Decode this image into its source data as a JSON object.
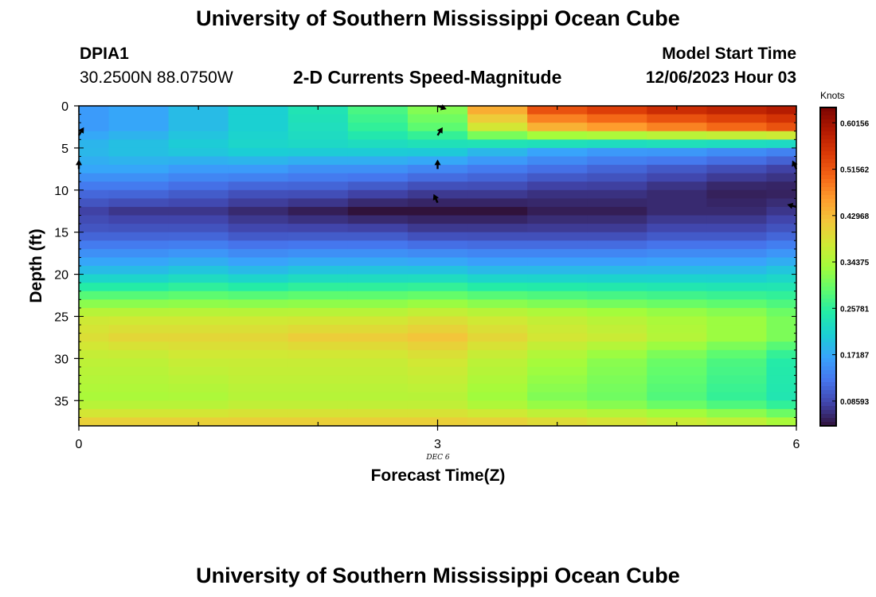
{
  "header": {
    "title": "University of Southern Mississippi Ocean Cube",
    "station": "DPIA1",
    "coords": "30.2500N  88.0750W",
    "plot_title": "2-D Currents Speed-Magnitude",
    "model_label": "Model Start Time",
    "model_time": "12/06/2023 Hour 03"
  },
  "footer": {
    "title": "University of Southern Mississippi Ocean Cube"
  },
  "colorbar": {
    "units": "Knots",
    "ticks": [
      "0.60156",
      "0.51562",
      "0.42968",
      "0.34375",
      "0.25781",
      "0.17187",
      "0.08593"
    ],
    "colors": [
      "#30123b",
      "#4145ab",
      "#4675ed",
      "#39a2fc",
      "#1bcfd4",
      "#24eca6",
      "#61fc6c",
      "#a4fc3b",
      "#d1e834",
      "#f3c63a",
      "#fe9b2d",
      "#f36315",
      "#d93806",
      "#b11901",
      "#7a0402"
    ]
  },
  "chart_data": {
    "type": "heatmap",
    "title": "2-D Currents Speed-Magnitude",
    "xlabel": "Forecast Time(Z)",
    "ylabel": "Depth (ft)",
    "x_ticks": [
      "0",
      "3",
      "6"
    ],
    "x_sublabel": "DEC 6",
    "y_ticks": [
      "0",
      "5",
      "10",
      "15",
      "20",
      "25",
      "30",
      "35"
    ],
    "xlim": [
      0,
      6
    ],
    "ylim": [
      38,
      0
    ],
    "vlim": [
      0.04,
      0.63
    ],
    "time_columns": [
      0,
      0.5,
      1,
      1.5,
      2,
      2.5,
      3,
      3.5,
      4,
      4.5,
      5,
      5.5,
      6
    ],
    "depth_knots": [
      0,
      2.5,
      5,
      7.5,
      10,
      12.5,
      15,
      20,
      25,
      27.5,
      30,
      35,
      38
    ],
    "speed_knots": [
      [
        0.16,
        0.17,
        0.19,
        0.21,
        0.24,
        0.28,
        0.32,
        0.46,
        0.54,
        0.56,
        0.58,
        0.59,
        0.6
      ],
      [
        0.16,
        0.17,
        0.19,
        0.21,
        0.23,
        0.26,
        0.29,
        0.38,
        0.44,
        0.46,
        0.48,
        0.5,
        0.52
      ],
      [
        0.19,
        0.2,
        0.21,
        0.22,
        0.22,
        0.22,
        0.22,
        0.2,
        0.18,
        0.17,
        0.17,
        0.16,
        0.15
      ],
      [
        0.17,
        0.17,
        0.16,
        0.16,
        0.15,
        0.15,
        0.14,
        0.13,
        0.12,
        0.11,
        0.1,
        0.09,
        0.08
      ],
      [
        0.12,
        0.12,
        0.11,
        0.1,
        0.1,
        0.09,
        0.08,
        0.08,
        0.07,
        0.07,
        0.06,
        0.05,
        0.05
      ],
      [
        0.08,
        0.07,
        0.07,
        0.06,
        0.05,
        0.04,
        0.04,
        0.04,
        0.05,
        0.05,
        0.06,
        0.06,
        0.07
      ],
      [
        0.1,
        0.1,
        0.1,
        0.09,
        0.09,
        0.09,
        0.08,
        0.08,
        0.08,
        0.08,
        0.09,
        0.09,
        0.1
      ],
      [
        0.2,
        0.2,
        0.21,
        0.2,
        0.21,
        0.21,
        0.21,
        0.2,
        0.2,
        0.2,
        0.2,
        0.2,
        0.21
      ],
      [
        0.37,
        0.37,
        0.37,
        0.37,
        0.37,
        0.37,
        0.38,
        0.37,
        0.36,
        0.35,
        0.34,
        0.33,
        0.31
      ],
      [
        0.39,
        0.4,
        0.4,
        0.4,
        0.41,
        0.41,
        0.42,
        0.4,
        0.38,
        0.37,
        0.35,
        0.33,
        0.31
      ],
      [
        0.36,
        0.36,
        0.37,
        0.37,
        0.37,
        0.37,
        0.38,
        0.36,
        0.34,
        0.32,
        0.3,
        0.28,
        0.25
      ],
      [
        0.34,
        0.34,
        0.34,
        0.35,
        0.35,
        0.35,
        0.35,
        0.33,
        0.31,
        0.3,
        0.28,
        0.26,
        0.24
      ],
      [
        0.42,
        0.42,
        0.42,
        0.42,
        0.42,
        0.42,
        0.42,
        0.42,
        0.41,
        0.4,
        0.39,
        0.38,
        0.36
      ]
    ],
    "vectors": [
      {
        "t": 0,
        "d": 3.5,
        "dir": "up-right"
      },
      {
        "t": 0,
        "d": 7.5,
        "dir": "up"
      },
      {
        "t": 3,
        "d": 0,
        "dir": "right-down"
      },
      {
        "t": 3,
        "d": 3.5,
        "dir": "up-right"
      },
      {
        "t": 3,
        "d": 7.5,
        "dir": "up"
      },
      {
        "t": 3,
        "d": 11.5,
        "dir": "up-left"
      },
      {
        "t": 6,
        "d": 7.5,
        "dir": "up-left"
      },
      {
        "t": 6,
        "d": 12,
        "dir": "left"
      }
    ]
  }
}
